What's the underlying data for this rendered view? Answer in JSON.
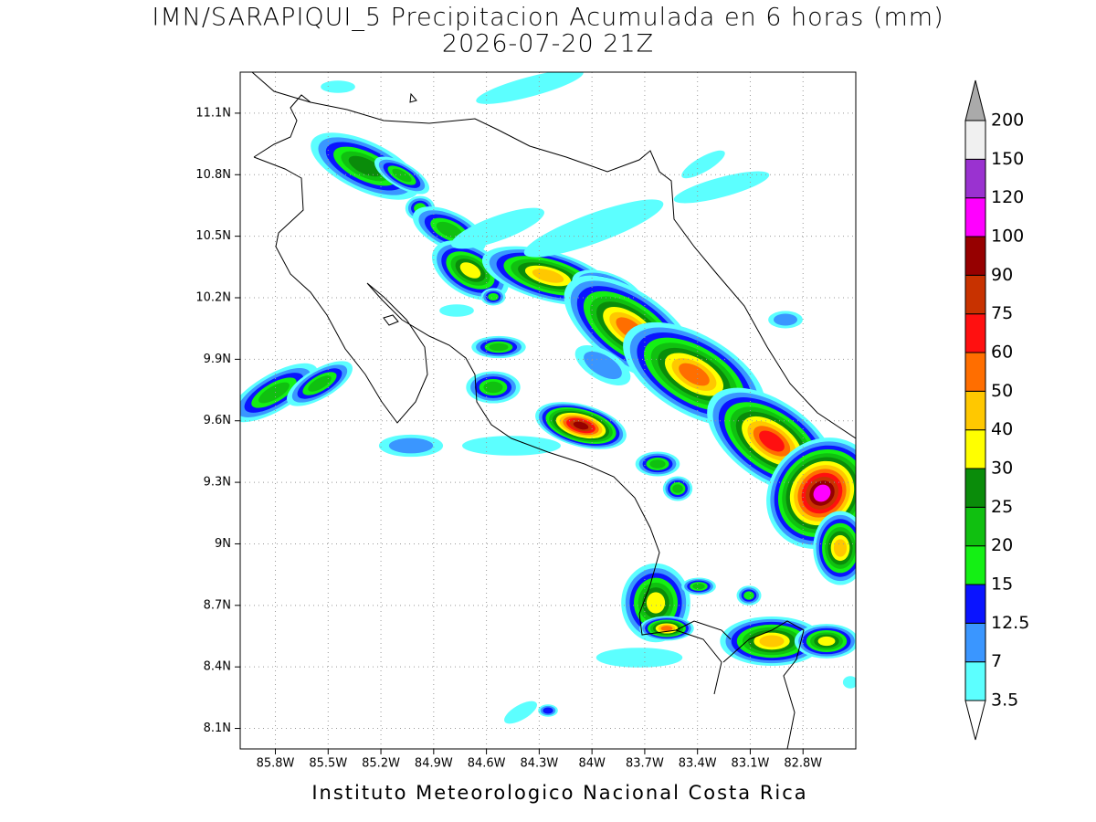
{
  "title": "IMN/SARAPIQUI_5 Precipitacion Acumulada en 6 horas (mm)",
  "subtitle": "2026-07-20 21Z",
  "footer": "Instituto Meteorologico Nacional Costa Rica",
  "map": {
    "lonlim": [
      -86.0,
      -82.5
    ],
    "latlim": [
      8.0,
      11.3
    ],
    "grid": true,
    "lon_ticks": [
      {
        "value": -85.8,
        "label": "85.8W"
      },
      {
        "value": -85.5,
        "label": "85.5W"
      },
      {
        "value": -85.2,
        "label": "85.2W"
      },
      {
        "value": -84.9,
        "label": "84.9W"
      },
      {
        "value": -84.6,
        "label": "84.6W"
      },
      {
        "value": -84.3,
        "label": "84.3W"
      },
      {
        "value": -84.0,
        "label": "84W"
      },
      {
        "value": -83.7,
        "label": "83.7W"
      },
      {
        "value": -83.4,
        "label": "83.4W"
      },
      {
        "value": -83.1,
        "label": "83.1W"
      },
      {
        "value": -82.8,
        "label": "82.8W"
      }
    ],
    "lat_ticks": [
      {
        "value": 11.1,
        "label": "11.1N"
      },
      {
        "value": 10.8,
        "label": "10.8N"
      },
      {
        "value": 10.5,
        "label": "10.5N"
      },
      {
        "value": 10.2,
        "label": "10.2N"
      },
      {
        "value": 9.9,
        "label": "9.9N"
      },
      {
        "value": 9.6,
        "label": "9.6N"
      },
      {
        "value": 9.3,
        "label": "9.3N"
      },
      {
        "value": 9.0,
        "label": "9N"
      },
      {
        "value": 8.7,
        "label": "8.7N"
      },
      {
        "value": 8.4,
        "label": "8.4N"
      },
      {
        "value": 8.1,
        "label": "8.1N"
      }
    ]
  },
  "colorbar": {
    "levels": [
      3.5,
      7,
      12.5,
      15,
      20,
      25,
      30,
      40,
      50,
      60,
      75,
      90,
      100,
      120,
      150,
      200
    ],
    "colors": [
      "#5cffff",
      "#3a96ff",
      "#0a14ff",
      "#14f014",
      "#10c010",
      "#0a8c0a",
      "#ffff00",
      "#ffc800",
      "#ff6e00",
      "#ff1010",
      "#c83200",
      "#960000",
      "#ff00ff",
      "#9a32d0",
      "#f0f0f0"
    ],
    "under_color": "#ffffff",
    "over_color": "#aaaaaa"
  }
}
